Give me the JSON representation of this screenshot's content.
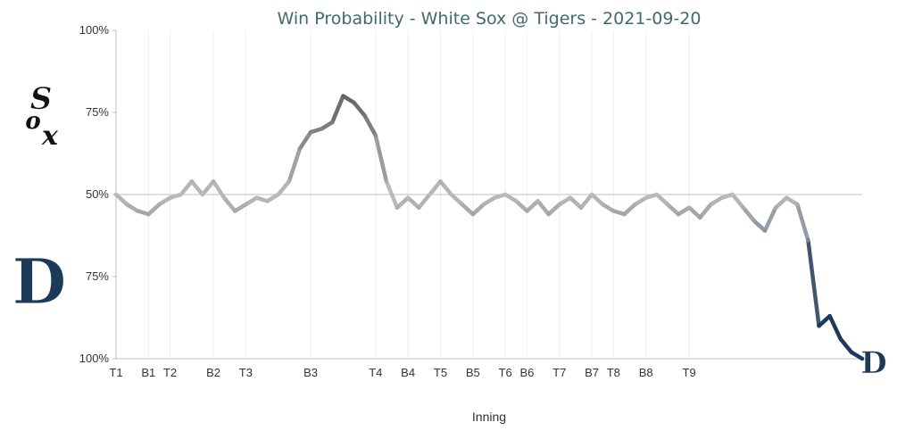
{
  "chart_data": {
    "type": "line",
    "title": "Win Probability - White Sox @ Tigers - 2021-09-20",
    "xlabel": "Inning",
    "ylabel": "",
    "y_tick_labels": [
      "100%",
      "75%",
      "50%",
      "75%",
      "100%"
    ],
    "ylim": [
      -50,
      50
    ],
    "x_tick_labels": [
      {
        "label": "T1",
        "index": 0
      },
      {
        "label": "B1",
        "index": 3
      },
      {
        "label": "T2",
        "index": 5
      },
      {
        "label": "B2",
        "index": 9
      },
      {
        "label": "T3",
        "index": 12
      },
      {
        "label": "B3",
        "index": 18
      },
      {
        "label": "T4",
        "index": 24
      },
      {
        "label": "B4",
        "index": 27
      },
      {
        "label": "T5",
        "index": 30
      },
      {
        "label": "B5",
        "index": 33
      },
      {
        "label": "T6",
        "index": 36
      },
      {
        "label": "B6",
        "index": 38
      },
      {
        "label": "T7",
        "index": 41
      },
      {
        "label": "B7",
        "index": 44
      },
      {
        "label": "T8",
        "index": 46
      },
      {
        "label": "B8",
        "index": 49
      },
      {
        "label": "T9",
        "index": 53
      }
    ],
    "grid": true,
    "series": [
      {
        "values": [
          0,
          -3,
          -5,
          -6,
          -3,
          -1,
          0,
          4,
          0,
          4,
          -1,
          -5,
          -3,
          -1,
          -2,
          0,
          4,
          14,
          19,
          20,
          22,
          30,
          28,
          24,
          18,
          4,
          -4,
          -1,
          -4,
          0,
          4,
          0,
          -3,
          -6,
          -3,
          -1,
          0,
          -2,
          -5,
          -2,
          -6,
          -3,
          -1,
          -4,
          0,
          -3,
          -5,
          -6,
          -3,
          -1,
          0,
          -3,
          -6,
          -4,
          -7,
          -3,
          -1,
          0,
          -4,
          -8,
          -11,
          -4,
          -1,
          -3,
          -14,
          -40,
          -37,
          -44,
          -48,
          -50
        ]
      }
    ],
    "team_top": {
      "name": "White Sox",
      "color": "#555555"
    },
    "team_bottom": {
      "name": "Tigers",
      "color": "#1d3a59"
    },
    "line_neutral_color": "#bbbbbb"
  }
}
